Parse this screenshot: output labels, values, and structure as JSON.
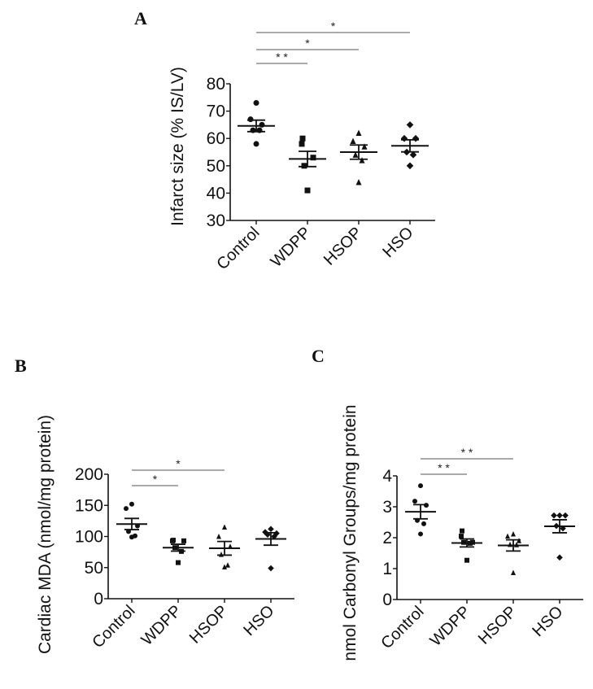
{
  "panels": {
    "A": {
      "letter": "A"
    },
    "B": {
      "letter": "B"
    },
    "C": {
      "letter": "C"
    }
  },
  "chart_data": [
    {
      "id": "A",
      "type": "scatter",
      "subtype": "dot plot with mean ± SEM",
      "title": "",
      "xlabel": "",
      "ylabel": "Infarct size (% IS/LV)",
      "categories": [
        "Control",
        "WDPP",
        "HSOP",
        "HSO"
      ],
      "markers": [
        "circle",
        "square",
        "triangle",
        "diamond"
      ],
      "ylim": [
        30,
        80
      ],
      "yticks": [
        30,
        40,
        50,
        60,
        70,
        80
      ],
      "series": [
        {
          "name": "Control",
          "points": [
            73,
            67,
            65,
            63,
            63,
            58
          ],
          "mean": 64.6,
          "sem": 2.1
        },
        {
          "name": "WDPP",
          "points": [
            60,
            58,
            53,
            50,
            41
          ],
          "mean": 52.5,
          "sem": 2.8
        },
        {
          "name": "HSOP",
          "points": [
            62,
            59,
            57,
            54,
            52,
            44
          ],
          "mean": 55.0,
          "sem": 2.6
        },
        {
          "name": "HSO",
          "points": [
            65,
            60,
            60,
            55,
            54,
            50
          ],
          "mean": 57.3,
          "sem": 2.2
        }
      ],
      "significance": [
        {
          "from": "Control",
          "to": "WDPP",
          "label": "**"
        },
        {
          "from": "Control",
          "to": "HSOP",
          "label": "*"
        },
        {
          "from": "Control",
          "to": "HSO",
          "label": "*"
        }
      ],
      "grid": false,
      "legend": "none"
    },
    {
      "id": "B",
      "type": "scatter",
      "subtype": "dot plot with mean ± SEM",
      "title": "",
      "xlabel": "",
      "ylabel": "Cardiac MDA (nmol/mg protein)",
      "categories": [
        "Control",
        "WDPP",
        "HSOP",
        "HSO"
      ],
      "markers": [
        "circle",
        "square",
        "triangle",
        "diamond"
      ],
      "ylim": [
        0,
        200
      ],
      "yticks": [
        0,
        50,
        100,
        150,
        200
      ],
      "series": [
        {
          "name": "Control",
          "points": [
            152,
            145,
            117,
            108,
            101,
            99
          ],
          "mean": 120,
          "sem": 9
        },
        {
          "name": "WDPP",
          "points": [
            94,
            93,
            93,
            82,
            76,
            58
          ],
          "mean": 82,
          "sem": 5.5
        },
        {
          "name": "HSOP",
          "points": [
            115,
            100,
            84,
            71,
            54,
            51
          ],
          "mean": 81,
          "sem": 11
        },
        {
          "name": "HSO",
          "points": [
            112,
            107,
            105,
            103,
            100,
            49
          ],
          "mean": 96,
          "sem": 10
        }
      ],
      "significance": [
        {
          "from": "Control",
          "to": "WDPP",
          "label": "*"
        },
        {
          "from": "Control",
          "to": "HSOP",
          "label": "*"
        }
      ],
      "grid": false,
      "legend": "none"
    },
    {
      "id": "C",
      "type": "scatter",
      "subtype": "dot plot with mean ± SEM",
      "title": "",
      "xlabel": "",
      "ylabel": "nmol Carbonyl Groups/mg protein",
      "categories": [
        "Control",
        "WDPP",
        "HSOP",
        "HSO"
      ],
      "markers": [
        "circle",
        "square",
        "triangle",
        "diamond"
      ],
      "ylim": [
        0,
        4
      ],
      "yticks": [
        0,
        1,
        2,
        3,
        4
      ],
      "series": [
        {
          "name": "Control",
          "points": [
            3.68,
            3.18,
            3.05,
            2.56,
            2.45,
            2.12
          ],
          "mean": 2.84,
          "sem": 0.23
        },
        {
          "name": "WDPP",
          "points": [
            2.22,
            2.05,
            1.85,
            1.85,
            1.82,
            1.27
          ],
          "mean": 1.83,
          "sem": 0.13
        },
        {
          "name": "HSOP",
          "points": [
            2.12,
            2.05,
            1.9,
            1.78,
            1.77,
            0.87
          ],
          "mean": 1.75,
          "sem": 0.18
        },
        {
          "name": "HSO",
          "points": [
            2.72,
            2.72,
            2.72,
            2.38,
            2.3,
            1.36
          ],
          "mean": 2.37,
          "sem": 0.21
        }
      ],
      "significance": [
        {
          "from": "Control",
          "to": "WDPP",
          "label": "**"
        },
        {
          "from": "Control",
          "to": "HSOP",
          "label": "**"
        }
      ],
      "grid": false,
      "legend": "none"
    }
  ]
}
